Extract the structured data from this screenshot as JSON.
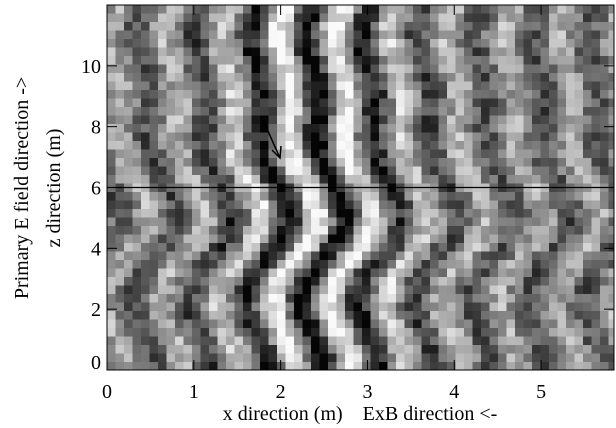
{
  "chart_data": {
    "type": "image",
    "xlabel": "x direction (m)    ExB direction <-",
    "ylabel": [
      "Primary E field direction ->",
      "z direction (m)"
    ],
    "xlim": [
      0,
      5.84
    ],
    "ylim": [
      0,
      12
    ],
    "xticks": [
      0,
      1,
      2,
      3,
      4,
      5
    ],
    "yticks": [
      0,
      2,
      4,
      6,
      8,
      10
    ],
    "hline": 6
  }
}
